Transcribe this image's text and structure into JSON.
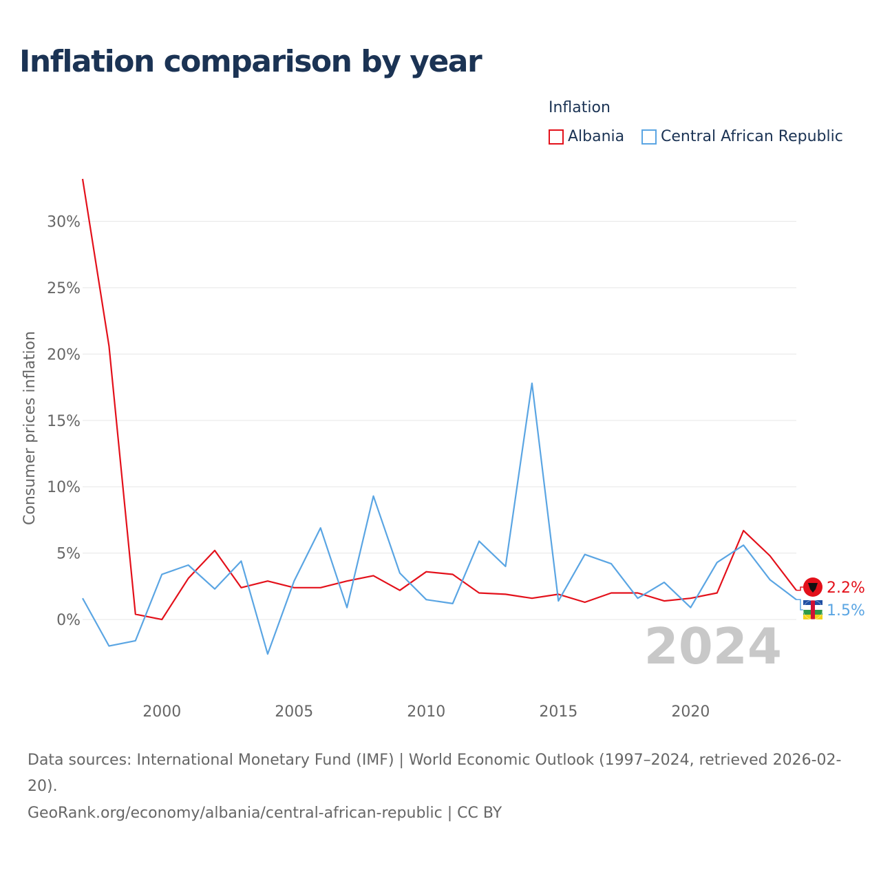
{
  "title": "Inflation comparison by year",
  "legend": {
    "title": "Inflation",
    "items": [
      {
        "label": "Albania",
        "color": "#e3101a"
      },
      {
        "label": "Central African Republic",
        "color": "#5aa5e3"
      }
    ]
  },
  "chart_data": {
    "type": "line",
    "title": "Inflation comparison by year",
    "xlabel": "",
    "ylabel": "Consumer prices inflation",
    "x": [
      1997,
      1998,
      1999,
      2000,
      2001,
      2002,
      2003,
      2004,
      2005,
      2006,
      2007,
      2008,
      2009,
      2010,
      2011,
      2012,
      2013,
      2014,
      2015,
      2016,
      2017,
      2018,
      2019,
      2020,
      2021,
      2022,
      2023,
      2024
    ],
    "xlim": [
      1997,
      2024
    ],
    "ylim": [
      -5.7,
      32
    ],
    "x_ticks": [
      2000,
      2005,
      2010,
      2015,
      2020
    ],
    "y_ticks": [
      0,
      5,
      10,
      15,
      20,
      25,
      30
    ],
    "y_tick_labels": [
      "0%",
      "5%",
      "10%",
      "15%",
      "20%",
      "25%",
      "30%"
    ],
    "grid": true,
    "year_label": "2024",
    "series": [
      {
        "name": "Albania",
        "color": "#e3101a",
        "end_label": "2.2%",
        "values": [
          33.2,
          20.6,
          0.4,
          0.0,
          3.1,
          5.2,
          2.4,
          2.9,
          2.4,
          2.4,
          2.9,
          3.3,
          2.2,
          3.6,
          3.4,
          2.0,
          1.9,
          1.6,
          1.9,
          1.3,
          2.0,
          2.0,
          1.4,
          1.6,
          2.0,
          6.7,
          4.8,
          2.2
        ]
      },
      {
        "name": "Central African Republic",
        "color": "#5aa5e3",
        "end_label": "1.5%",
        "values": [
          1.6,
          -2.0,
          -1.6,
          3.4,
          4.1,
          2.3,
          4.4,
          -2.6,
          2.9,
          6.9,
          0.9,
          9.3,
          3.5,
          1.5,
          1.2,
          5.9,
          4.0,
          17.8,
          1.4,
          4.9,
          4.2,
          1.6,
          2.8,
          0.9,
          4.3,
          5.6,
          3.0,
          1.5
        ]
      }
    ]
  },
  "footer": {
    "sources": "Data sources: International Monetary Fund (IMF) | World Economic Outlook (1997–2024, retrieved 2026-02-20).",
    "credit": "GeoRank.org/economy/albania/central-african-republic | CC BY"
  }
}
